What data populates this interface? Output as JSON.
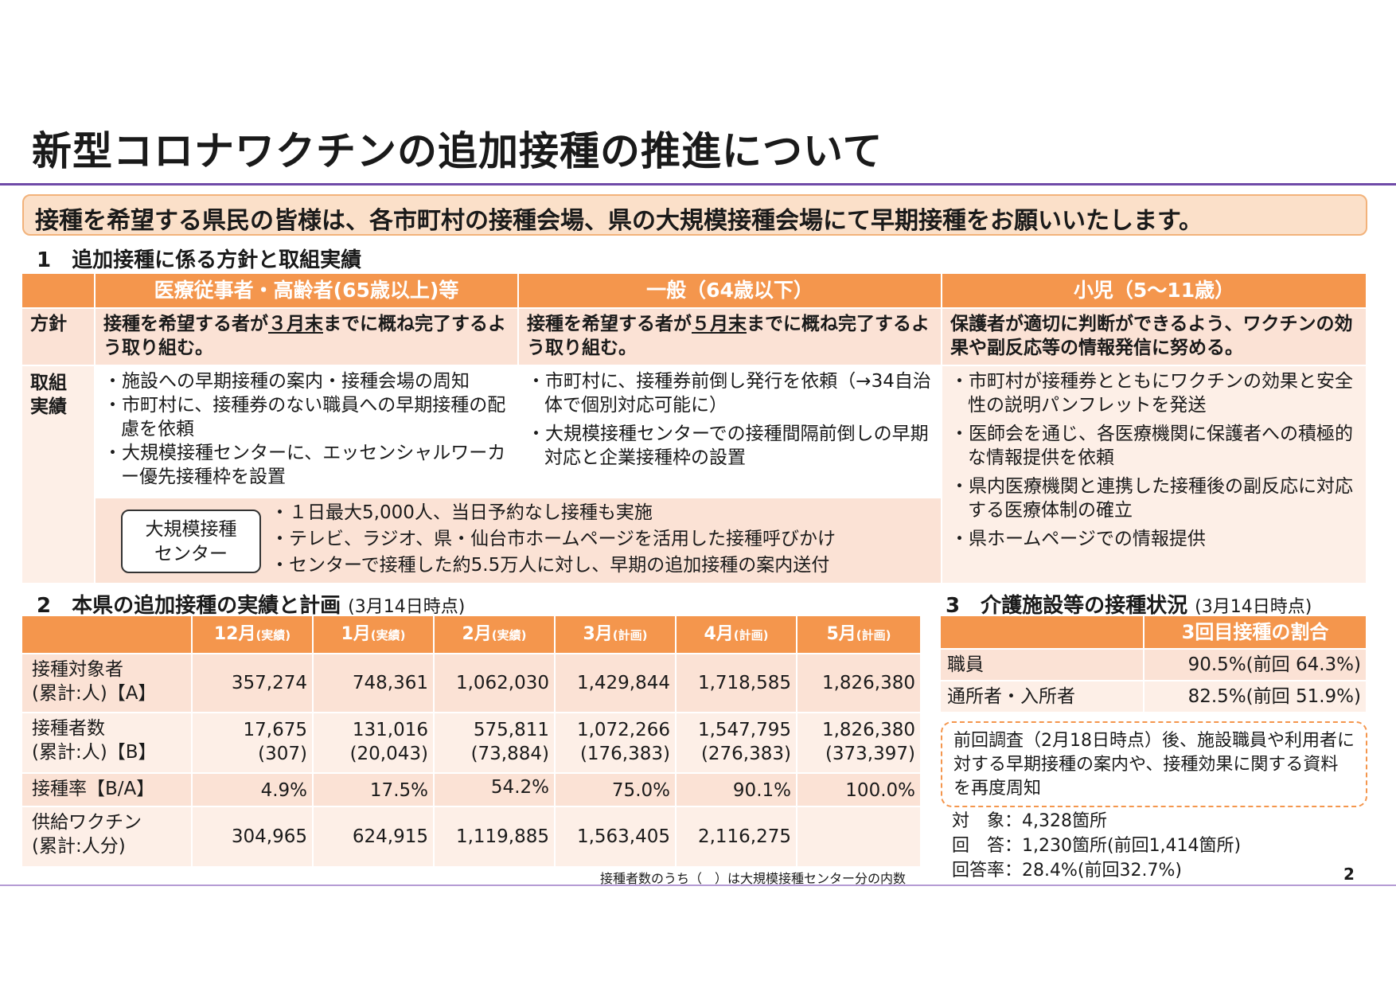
{
  "title": "新型コロナワクチンの追加接種の推進について",
  "banner": "接種を希望する県民の皆様は、各市町村の接種会場、県の大規模接種会場にて早期接種をお願いいたします。",
  "section1": {
    "heading": "1　追加接種に係る方針と取組実績",
    "columns": [
      "医療従事者・高齢者(65歳以上)等",
      "一般（64歳以下）",
      "小児（5～11歳）"
    ],
    "policy_label": "方針",
    "results_label_1": "取組",
    "results_label_2": "実績",
    "policies": [
      {
        "pre": "接種を希望する者が",
        "u": "３月末",
        "post": "までに概ね完了するよう取り組む。"
      },
      {
        "pre": "接種を希望する者が",
        "u": "５月末",
        "post": "までに概ね完了するよう取り組む。"
      },
      {
        "pre": "保護者が適切に判断ができるよう、ワクチンの効果や副反応等の情報発信に努める。",
        "u": "",
        "post": ""
      }
    ],
    "results_col1": [
      "・施設への早期接種の案内・接種会場の周知",
      "・市町村に、接種券のない職員への早期接種の配慮を依頼",
      "・大規模接種センターに、エッセンシャルワーカー優先接種枠を設置"
    ],
    "results_col2": [
      "・市町村に、接種券前倒し発行を依頼（→34自治体で個別対応可能に）",
      "・大規模接種センターでの接種間隔前倒しの早期対応と企業接種枠の設置"
    ],
    "results_col3": [
      "・市町村が接種券とともにワクチンの効果と安全性の説明パンフレットを発送",
      "・医師会を通じ、各医療機関に保護者への積極的な情報提供を依頼",
      "・県内医療機関と連携した接種後の副反応に対応する医療体制の確立",
      "・県ホームページでの情報提供"
    ],
    "center_label_1": "大規模接種",
    "center_label_2": "センター",
    "center_items": [
      "・１日最大5,000人、当日予約なし接種も実施",
      "・テレビ、ラジオ、県・仙台市ホームページを活用した接種呼びかけ",
      "・センターで接種した約5.5万人に対し、早期の追加接種の案内送付"
    ]
  },
  "section2": {
    "heading": "2　本県の追加接種の実績と計画",
    "note": "(3月14日時点)",
    "months": [
      {
        "m": "12月",
        "s": "(実績)"
      },
      {
        "m": "1月",
        "s": "(実績)"
      },
      {
        "m": "2月",
        "s": "(実績)"
      },
      {
        "m": "3月",
        "s": "(計画)"
      },
      {
        "m": "4月",
        "s": "(計画)"
      },
      {
        "m": "5月",
        "s": "(計画)"
      }
    ],
    "rows": {
      "target_label_1": "接種対象者",
      "target_label_2": "(累計:人)【A】",
      "target": [
        "357,274",
        "748,361",
        "1,062,030",
        "1,429,844",
        "1,718,585",
        "1,826,380"
      ],
      "vacc_label_1": "接種者数",
      "vacc_label_2": "(累計:人)【B】",
      "vacc": [
        "17,675",
        "131,016",
        "575,811",
        "1,072,266",
        "1,547,795",
        "1,826,380"
      ],
      "vacc_center": [
        "(307)",
        "(20,043)",
        "(73,884)",
        "(176,383)",
        "(276,383)",
        "(373,397)"
      ],
      "rate_label": "接種率【B/A】",
      "rate": [
        "4.9%",
        "17.5%",
        "54.2%",
        "75.0%",
        "90.1%",
        "100.0%"
      ],
      "supply_label_1": "供給ワクチン",
      "supply_label_2": "(累計:人分)",
      "supply": [
        "304,965",
        "624,915",
        "1,119,885",
        "1,563,405",
        "2,116,275",
        ""
      ]
    },
    "footnote": "接種者数のうち（　）は大規模接種センター分の内数"
  },
  "section3": {
    "heading": "3　介護施設等の接種状況",
    "note": "(3月14日時点)",
    "col_header": "3回目接種の割合",
    "rows": [
      {
        "label": "職員",
        "value": "90.5%(前回 64.3%)"
      },
      {
        "label": "通所者・入所者",
        "value": "82.5%(前回 51.9%)"
      }
    ],
    "notebox": "前回調査（2月18日時点）後、施設職員や利用者に対する早期接種の案内や、接種効果に関する資料を再度周知",
    "info": [
      "対　象：4,328箇所",
      "回　答：1,230箇所(前回1,414箇所)",
      "回答率：28.4%(前回32.7%)"
    ]
  },
  "page_number": "2"
}
